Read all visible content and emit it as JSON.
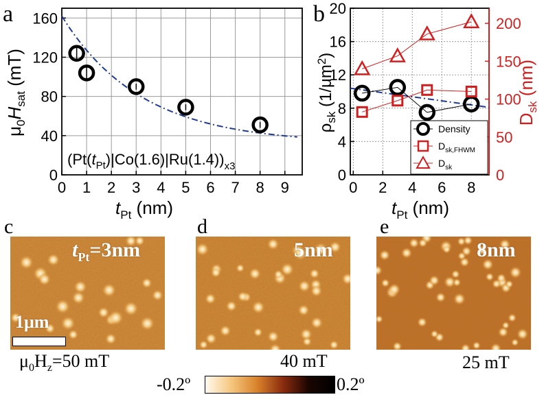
{
  "chart_data": [
    {
      "panel": "a",
      "type": "scatter",
      "ylabel_main": "μ",
      "ylabel_sub0": "0",
      "ylabel_H": "H",
      "ylabel_sub_sat": "sat",
      "ylabel_unit": " (mT)",
      "xlabel_t": "t",
      "xlabel_sub": "Pt",
      "xlabel_unit": " (nm)",
      "xlim": [
        0,
        9.7
      ],
      "ylim": [
        0,
        170
      ],
      "xticks": [
        0,
        1,
        2,
        3,
        4,
        5,
        6,
        7,
        8,
        9
      ],
      "yticks": [
        0,
        40,
        80,
        120,
        160
      ],
      "points": [
        {
          "x": 0.6,
          "y": 124,
          "err": 8
        },
        {
          "x": 1.0,
          "y": 104,
          "err": 6
        },
        {
          "x": 3.0,
          "y": 90,
          "err": 3
        },
        {
          "x": 5.0,
          "y": 69,
          "err": 3
        },
        {
          "x": 8.0,
          "y": 51,
          "err": 3
        }
      ],
      "fit_color": "#1f3a93",
      "annotation": {
        "pre": "(Pt(",
        "t": "t",
        "t_sub": "Pt",
        "mid": ")|Co(1.6)|Ru(1.4))",
        "sub": "x3"
      }
    },
    {
      "panel": "b",
      "type": "scatter",
      "xlabel_t": "t",
      "xlabel_sub": "Pt",
      "xlabel_unit": " (nm)",
      "ylabel_left_rho": "ρ",
      "ylabel_left_sub": "sk",
      "ylabel_left_unit": " (1/μm",
      "ylabel_left_sup": "2",
      "ylabel_left_close": ")",
      "ylabel_right": "D",
      "ylabel_right_sub": "sk",
      "ylabel_right_unit": " (nm)",
      "xlim": [
        -0.2,
        9.2
      ],
      "ylim_left": [
        0,
        20
      ],
      "ylim_right": [
        0,
        220
      ],
      "xticks": [
        0,
        2,
        4,
        6,
        8
      ],
      "yticks_left": [
        0,
        4,
        8,
        12,
        16,
        20
      ],
      "yticks_right": [
        0,
        50,
        100,
        150,
        200
      ],
      "right_axis_color": "#d11f1f",
      "series": [
        {
          "name": "Density",
          "axis": "left",
          "marker": "circle",
          "color": "#000000",
          "x": [
            0.6,
            3.0,
            5.0,
            8.0
          ],
          "y": [
            9.8,
            10.5,
            7.5,
            8.5
          ]
        },
        {
          "name": "D",
          "name_sub": "sk,FHWM",
          "axis": "right",
          "marker": "square",
          "color": "#d11f1f",
          "x": [
            0.6,
            3.0,
            5.0,
            8.0
          ],
          "y": [
            83,
            98,
            112,
            110
          ]
        },
        {
          "name": "D",
          "name_sub": "sk",
          "axis": "right",
          "marker": "triangle",
          "color": "#d11f1f",
          "x": [
            0.6,
            3.0,
            5.0,
            8.0
          ],
          "y": [
            140,
            157,
            186,
            202
          ]
        }
      ],
      "legend_position": "bottom-right"
    }
  ],
  "panels": {
    "a": "a",
    "b": "b",
    "c": "c",
    "d": "d",
    "e": "e"
  },
  "images": {
    "c": {
      "label_t": "t",
      "label_sub": "Pt",
      "label_rest": "=3nm",
      "scalebar": "1μm",
      "field_pre": "μ",
      "field_sub0": "0",
      "field_H": "H",
      "field_subz": "z",
      "field_rest": "=50 mT"
    },
    "d": {
      "label": "5nm",
      "field": "40 mT"
    },
    "e": {
      "label": "8nm",
      "field": "25 mT"
    }
  },
  "colorbar": {
    "min_label": "-0.2º",
    "max_label": "0.2º",
    "colors": [
      "#fffaf0",
      "#f5c77e",
      "#d9822b",
      "#8b2c0f",
      "#1a0500",
      "#000000"
    ]
  }
}
